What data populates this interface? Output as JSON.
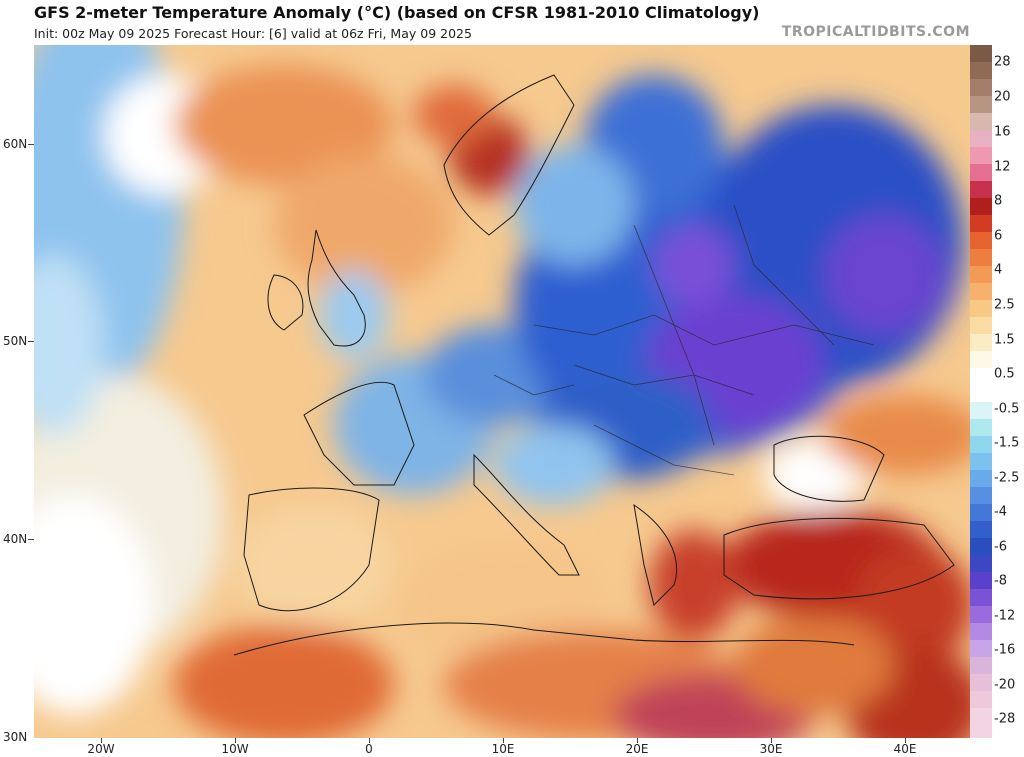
{
  "title": "GFS 2-meter Temperature Anomaly (°C) (based on CFSR 1981-2010 Climatology)",
  "subtitle": "Init: 00z May 09 2025   Forecast Hour: [6]   valid at 06z Fri, May 09 2025",
  "brand": "TROPICALTIDBITS.COM",
  "lat_labels": [
    "60N",
    "50N",
    "40N",
    "30N"
  ],
  "lon_labels": [
    "20W",
    "10W",
    "0",
    "10E",
    "20E",
    "30E",
    "40E"
  ],
  "legend_labels": [
    "28",
    "20",
    "16",
    "12",
    "8",
    "6",
    "4",
    "2.5",
    "1.5",
    "0.5",
    "-0.5",
    "-1.5",
    "-2.5",
    "-4",
    "-6",
    "-8",
    "-12",
    "-16",
    "-20",
    "-28"
  ],
  "colors": {
    "cold_deep": "#6a3fd0",
    "cold": "#2e5fc8",
    "cool": "#7fb3e8",
    "neutral": "#ffffff",
    "warm": "#f7c98a",
    "hot": "#e0622d",
    "very_hot": "#b82a1e"
  }
}
